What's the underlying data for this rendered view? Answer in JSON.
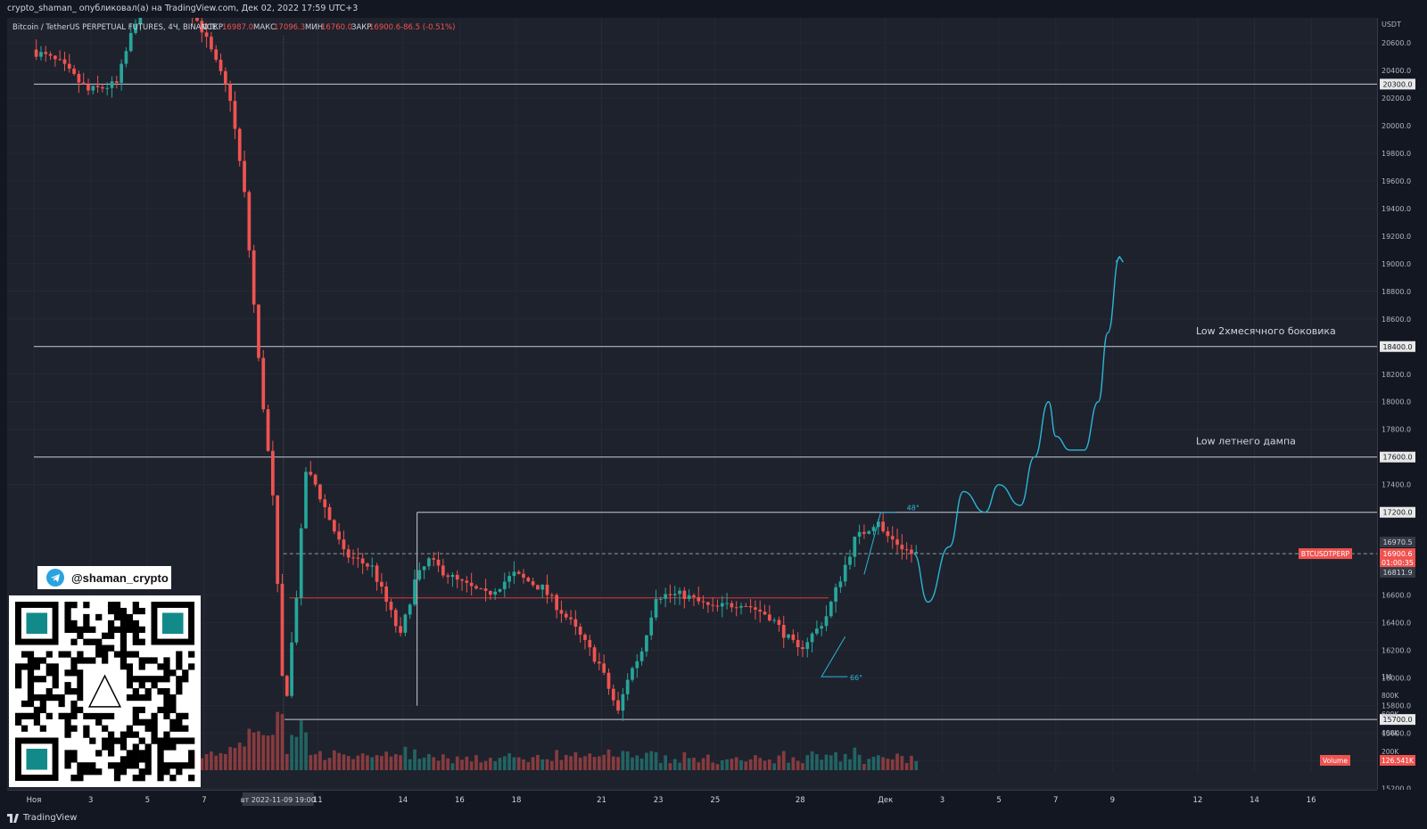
{
  "header": {
    "publisher_line": "crypto_shaman_ опубликовал(а) на TradingView.com, Дек 02, 2022 17:59 UTC+3"
  },
  "legend": {
    "symbol": "Bitcoin / TetherUS PERPETUAL FUTURES, 4Ч, BINANCE",
    "open_label": "ОТКР",
    "open_value": "16987.0",
    "high_label": "МАКС",
    "high_value": "17096.3",
    "low_label": "МИН",
    "low_value": "16760.0",
    "close_label": "ЗАКР",
    "close_value": "16900.6",
    "change_value": "-86.5 (-0.51%)"
  },
  "chart_data": {
    "type": "candlestick",
    "currency": "USDT",
    "y_range": [
      15320,
      20780
    ],
    "y_ticks": [
      20600,
      20400,
      20200,
      20000,
      19800,
      19600,
      19400,
      19200,
      19000,
      18800,
      18600,
      18200,
      18000,
      17800,
      17400,
      16600,
      16400,
      16200,
      16000,
      15800,
      15600,
      15400,
      15200
    ],
    "x_axis": {
      "first_date": "2022-11-01",
      "last_date": "2022-12-17",
      "ticks": [
        {
          "label": "Ноя",
          "date": "2022-11-01"
        },
        {
          "label": "3",
          "date": "2022-11-03"
        },
        {
          "label": "5",
          "date": "2022-11-05"
        },
        {
          "label": "7",
          "date": "2022-11-07"
        },
        {
          "label": "11",
          "date": "2022-11-11"
        },
        {
          "label": "14",
          "date": "2022-11-14"
        },
        {
          "label": "16",
          "date": "2022-11-16"
        },
        {
          "label": "18",
          "date": "2022-11-18"
        },
        {
          "label": "21",
          "date": "2022-11-21"
        },
        {
          "label": "23",
          "date": "2022-11-23"
        },
        {
          "label": "25",
          "date": "2022-11-25"
        },
        {
          "label": "28",
          "date": "2022-11-28"
        },
        {
          "label": "Дек",
          "date": "2022-12-01"
        },
        {
          "label": "3",
          "date": "2022-12-03"
        },
        {
          "label": "5",
          "date": "2022-12-05"
        },
        {
          "label": "7",
          "date": "2022-12-07"
        },
        {
          "label": "9",
          "date": "2022-12-09"
        },
        {
          "label": "12",
          "date": "2022-12-12"
        },
        {
          "label": "14",
          "date": "2022-12-14"
        },
        {
          "label": "16",
          "date": "2022-12-16"
        }
      ],
      "cursor_label": "вт 2022-11-09   19:00",
      "cursor_date": "2022-11-09T19:00"
    },
    "path_keypoints": [
      [
        "2022-11-01",
        20550
      ],
      [
        "2022-11-02",
        20450
      ],
      [
        "2022-11-03",
        20250
      ],
      [
        "2022-11-04",
        20300
      ],
      [
        "2022-11-05",
        21000
      ],
      [
        "2022-11-06",
        21050
      ],
      [
        "2022-11-07",
        20700
      ],
      [
        "2022-11-08",
        20200
      ],
      [
        "2022-11-08T12:00",
        19500
      ],
      [
        "2022-11-09",
        18300
      ],
      [
        "2022-11-09T12:00",
        17300
      ],
      [
        "2022-11-09T20:00",
        16000
      ],
      [
        "2022-11-10",
        15900
      ],
      [
        "2022-11-10T08:00",
        16600
      ],
      [
        "2022-11-10T16:00",
        17500
      ],
      [
        "2022-11-11",
        17400
      ],
      [
        "2022-11-12",
        16900
      ],
      [
        "2022-11-13",
        16800
      ],
      [
        "2022-11-14",
        16300
      ],
      [
        "2022-11-14T12:00",
        16700
      ],
      [
        "2022-11-15",
        16850
      ],
      [
        "2022-11-16",
        16700
      ],
      [
        "2022-11-17",
        16600
      ],
      [
        "2022-11-18",
        16750
      ],
      [
        "2022-11-19",
        16650
      ],
      [
        "2022-11-20",
        16400
      ],
      [
        "2022-11-21",
        16100
      ],
      [
        "2022-11-21T16:00",
        15750
      ],
      [
        "2022-11-22",
        16000
      ],
      [
        "2022-11-22T12:00",
        16200
      ],
      [
        "2022-11-23",
        16600
      ],
      [
        "2022-11-24",
        16600
      ],
      [
        "2022-11-25",
        16500
      ],
      [
        "2022-11-26",
        16550
      ],
      [
        "2022-11-27",
        16450
      ],
      [
        "2022-11-28",
        16200
      ],
      [
        "2022-11-28T16:00",
        16350
      ],
      [
        "2022-11-29",
        16450
      ],
      [
        "2022-11-30",
        17000
      ],
      [
        "2022-11-30T20:00",
        17150
      ],
      [
        "2022-12-01",
        17050
      ],
      [
        "2022-12-02",
        16900
      ]
    ],
    "volume_axis_labels": [
      "1M",
      "800K",
      "600K",
      "400K",
      "200K"
    ],
    "volume_label": "Volume",
    "volume_value": "126.541K",
    "horizontal_levels": [
      {
        "price": 20300,
        "label": "20300.0",
        "from_date": "2022-11-01"
      },
      {
        "price": 18400,
        "label": "18400.0",
        "from_date": "2022-11-01",
        "note": "Low 2хмесячного боковика"
      },
      {
        "price": 17600,
        "label": "17600.0",
        "from_date": "2022-11-01",
        "note": "Low летнего дампа"
      },
      {
        "price": 17200,
        "label": "17200.0",
        "from_date": "2022-11-14T12:00"
      },
      {
        "price": 15700,
        "label": "15700.0",
        "from_date": "2022-11-09T20:00"
      }
    ],
    "range_box_mid": 16580,
    "current_price_tag": {
      "symbol": "BTCUSDTPERP",
      "price": "16900.6",
      "countdown": "01:00:35"
    },
    "current_high_tag": "16970.5",
    "current_low_tag": "16811.9",
    "angle_labels": [
      {
        "text": "48°",
        "date": "2022-12-01T18:00",
        "price": 17215
      },
      {
        "text": "66°",
        "date": "2022-11-29T18:00",
        "price": 15985
      }
    ],
    "projection_path": [
      [
        "2022-12-02",
        16900
      ],
      [
        "2022-12-02T12:00",
        16550
      ],
      [
        "2022-12-03T06:00",
        16950
      ],
      [
        "2022-12-03T18:00",
        17350
      ],
      [
        "2022-12-04T12:00",
        17200
      ],
      [
        "2022-12-05",
        17400
      ],
      [
        "2022-12-05T18:00",
        17250
      ],
      [
        "2022-12-06T06:00",
        17600
      ],
      [
        "2022-12-06T18:00",
        18000
      ],
      [
        "2022-12-07",
        17750
      ],
      [
        "2022-12-07T12:00",
        17650
      ],
      [
        "2022-12-08",
        17650
      ],
      [
        "2022-12-08T12:00",
        18000
      ],
      [
        "2022-12-08T20:00",
        18500
      ],
      [
        "2022-12-09T06:00",
        19050
      ]
    ]
  },
  "branding": {
    "telegram_handle": "@shaman_crypto",
    "footer_logo": "TradingView"
  },
  "colors": {
    "bull": "#26a69a",
    "bear": "#ef5350",
    "projection": "#2ab6d6",
    "level_line": "#c8ccd6",
    "range_mid": "#e0383e"
  }
}
